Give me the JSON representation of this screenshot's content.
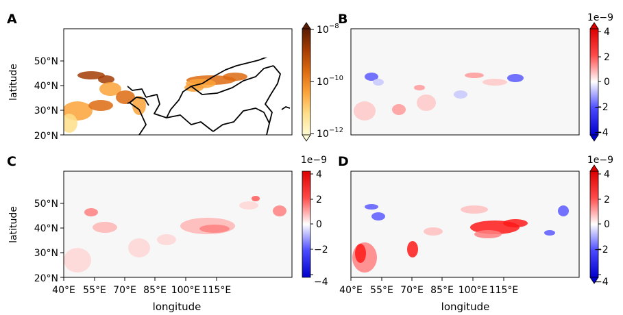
{
  "figure": {
    "panels": [
      {
        "letter": "A",
        "colorbar": {
          "kind": "log",
          "ticks": [
            {
              "base": "10",
              "exp": "−8"
            },
            {
              "base": "10",
              "exp": "−10"
            },
            {
              "base": "10",
              "exp": "−12"
            }
          ],
          "colors": [
            "#fffbd5",
            "#fedf8a",
            "#fca33a",
            "#dd6a10",
            "#a53c04",
            "#5b1b03"
          ]
        },
        "ylabel": "latitude",
        "yticks": [
          "50°N",
          "40°N",
          "30°N",
          "20°N"
        ],
        "field": "positive"
      },
      {
        "letter": "B",
        "colorbar": {
          "kind": "diverging",
          "offset": "1e−9",
          "ticks": [
            "4",
            "2",
            "0",
            "−2",
            "−4"
          ],
          "colors": [
            "#0000cc",
            "#4a4aff",
            "#ffffff",
            "#ff4a4a",
            "#dd0000"
          ]
        },
        "field": "mixed"
      },
      {
        "letter": "C",
        "colorbar": {
          "kind": "diverging",
          "offset": "1e−9",
          "ticks": [
            "4",
            "2",
            "0",
            "−2",
            "−4"
          ],
          "colors": [
            "#0000cc",
            "#4a4aff",
            "#ffffff",
            "#ff4a4a",
            "#dd0000"
          ]
        },
        "ylabel": "latitude",
        "yticks": [
          "50°N",
          "40°N",
          "30°N",
          "20°N"
        ],
        "xlabel": "longitude",
        "xticks": [
          "40°E",
          "55°E",
          "70°E",
          "85°E",
          "100°E",
          "115°E"
        ],
        "field": "red"
      },
      {
        "letter": "D",
        "colorbar": {
          "kind": "diverging",
          "offset": "1e−9",
          "ticks": [
            "4",
            "2",
            "0",
            "−2",
            "−4"
          ],
          "colors": [
            "#0000cc",
            "#4a4aff",
            "#ffffff",
            "#ff4a4a",
            "#dd0000"
          ]
        },
        "xlabel": "longitude",
        "xticks": [
          "40°E",
          "55°E",
          "70°E",
          "85°E",
          "100°E",
          "115°E"
        ],
        "field": "strong"
      }
    ]
  }
}
